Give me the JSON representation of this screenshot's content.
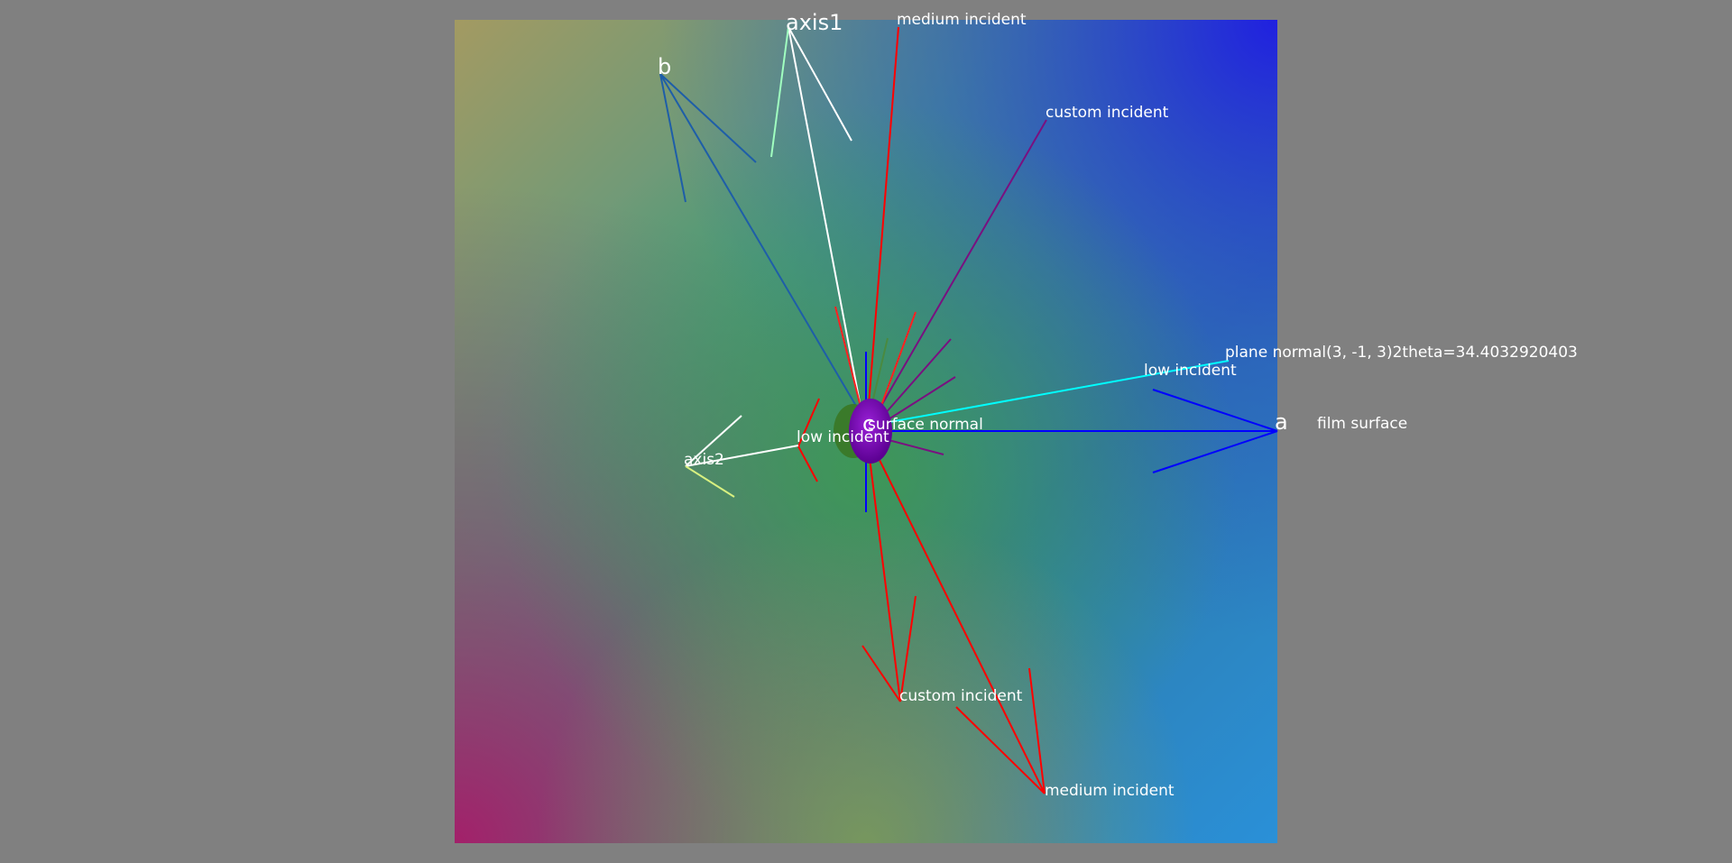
{
  "scene": {
    "labels": {
      "axis1": "axis1",
      "axis2": "axis2",
      "a": "a",
      "b": "b",
      "c": "c",
      "film_surface": "film surface",
      "surface_normal": "surface normal",
      "plane_normal": "plane normal(3, -1, 3)2theta=34.4032920403",
      "medium_incident_top": "medium incident",
      "medium_incident_bottom": "medium incident",
      "custom_incident_top": "custom incident",
      "custom_incident_bottom": "custom incident",
      "low_incident_right": "low incident",
      "low_incident_left": "low incident"
    },
    "colors": {
      "background": "#808080",
      "axis_a": "#0000ff",
      "axis_b": "#1e5ea8",
      "axis_white": "#ffffff",
      "beam_red": "#ff0000",
      "beam_purple": "#7a1080",
      "plane_normal": "#00ffff",
      "sphere": "#7a00b4"
    }
  }
}
